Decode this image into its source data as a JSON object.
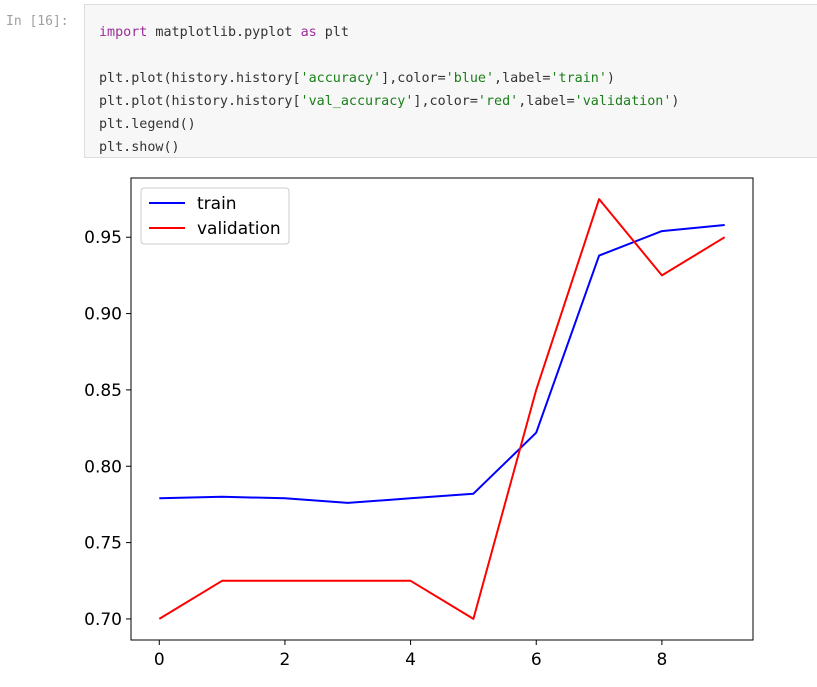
{
  "cell": {
    "prompt": "In [16]:",
    "code": {
      "line1": {
        "kw_import": "import",
        "module": " matplotlib.pyplot ",
        "kw_as": "as",
        "alias": " plt"
      },
      "line3": {
        "pre": "plt.plot(history.history[",
        "key": "'accuracy'",
        "mid": "],color=",
        "color": "'blue'",
        "mid2": ",label=",
        "label": "'train'",
        "end": ")"
      },
      "line4": {
        "pre": "plt.plot(history.history[",
        "key": "'val_accuracy'",
        "mid": "],color=",
        "color": "'red'",
        "mid2": ",label=",
        "label": "'validation'",
        "end": ")"
      },
      "line5": "plt.legend()",
      "line6": "plt.show()"
    }
  },
  "chart_data": {
    "type": "line",
    "x": [
      0,
      1,
      2,
      3,
      4,
      5,
      6,
      7,
      8,
      9
    ],
    "series": [
      {
        "name": "train",
        "color": "#0000ff",
        "values": [
          0.779,
          0.78,
          0.779,
          0.776,
          0.779,
          0.782,
          0.822,
          0.938,
          0.954,
          0.958
        ]
      },
      {
        "name": "validation",
        "color": "#ff0000",
        "values": [
          0.7,
          0.725,
          0.725,
          0.725,
          0.725,
          0.7,
          0.85,
          0.975,
          0.925,
          0.95
        ]
      }
    ],
    "xticks": [
      0,
      2,
      4,
      6,
      8
    ],
    "yticks": [
      0.7,
      0.75,
      0.8,
      0.85,
      0.9,
      0.95
    ],
    "ytick_labels": [
      "0.70",
      "0.75",
      "0.80",
      "0.85",
      "0.90",
      "0.95"
    ],
    "xlim": [
      -0.45,
      9.45
    ],
    "ylim": [
      0.6862,
      0.9888
    ],
    "legend": "upper-left",
    "grid": false
  }
}
